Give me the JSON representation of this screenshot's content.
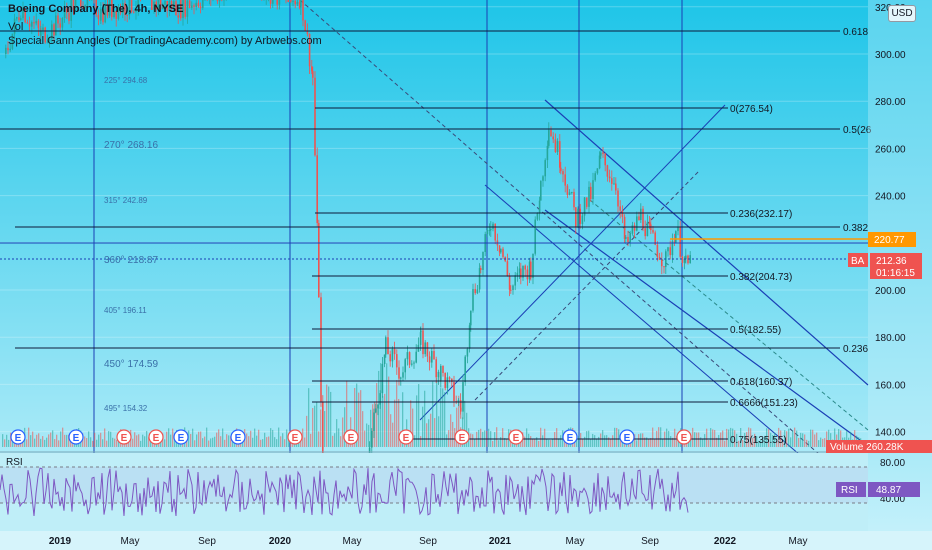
{
  "header": {
    "symbol_line": "Boeing Company (The), 4h, NYSE",
    "vol_label": "Vol",
    "indicator_line": "Special Gann Angles (DrTradingAcademy.com) by Arbwebs.com",
    "currency_button": "USD"
  },
  "colors": {
    "background_top": "#1ec5e8",
    "background_bottom": "#c2f0fa",
    "up_candle": "#26a69a",
    "down_candle": "#ef5350",
    "rsi_line": "#7e57c2",
    "price_tag": "#ef5350",
    "orange_line": "#ff9800"
  },
  "price_axis": {
    "labels": [
      "320.00",
      "300.00",
      "280.00",
      "260.00",
      "240.00",
      "220.00",
      "200.00",
      "180.00",
      "160.00",
      "140.00"
    ]
  },
  "time_axis": {
    "labels": [
      "2019",
      "May",
      "Sep",
      "2020",
      "May",
      "Sep",
      "2021",
      "May",
      "Sep",
      "2022",
      "May"
    ]
  },
  "gann_angles": [
    {
      "label": "225° 294.68"
    },
    {
      "label": "270° 268.16"
    },
    {
      "label": "315° 242.89"
    },
    {
      "label": "360° 218.87"
    },
    {
      "label": "405° 196.11"
    },
    {
      "label": "450° 174.59"
    },
    {
      "label": "495° 154.32"
    }
  ],
  "fib_levels": [
    {
      "label": "0.618"
    },
    {
      "label": "0(276.54)"
    },
    {
      "label": "0.5(26"
    },
    {
      "label": "0.236(232.17)"
    },
    {
      "label": "0.382"
    },
    {
      "label": "0.382(204.73)"
    },
    {
      "label": "0.5(182.55)"
    },
    {
      "label": "0.236"
    },
    {
      "label": "0.618(160.37)"
    },
    {
      "label": "0.6666(151.23)"
    },
    {
      "label": "0.75(135.55)"
    }
  ],
  "tags": {
    "orange_price": "220.77",
    "symbol": "BA",
    "last_price": "212.36",
    "countdown": "01:16:15",
    "volume": "Volume  260.28K",
    "rsi_label": "RSI",
    "rsi_value": "48.87"
  },
  "events": [
    "E",
    "E",
    "E",
    "E",
    "E",
    "E",
    "E",
    "E",
    "E",
    "E",
    "E",
    "E",
    "E",
    "E"
  ],
  "rsi_panel": {
    "title": "RSI",
    "axis_labels": [
      "80.00",
      "40.00"
    ]
  }
}
